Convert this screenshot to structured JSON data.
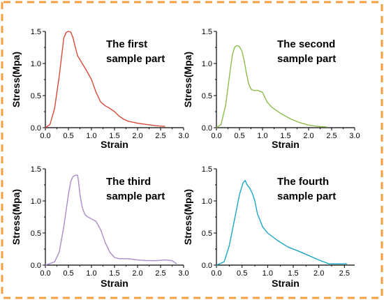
{
  "chart_data": [
    {
      "type": "line",
      "title": "",
      "annotation": [
        "The first",
        "sample part"
      ],
      "xlabel": "Strain",
      "ylabel": "Stress(Mpa)",
      "xlim": [
        0,
        3.0
      ],
      "ylim": [
        0,
        1.5
      ],
      "xticks": [
        "0.0",
        "0.5",
        "1.0",
        "1.5",
        "2.0",
        "2.5",
        "3.0"
      ],
      "yticks": [
        "0.0",
        "0.5",
        "1.0",
        "1.5"
      ],
      "color": "#d94a3a",
      "grid": false,
      "series": [
        {
          "x": [
            0,
            0.1,
            0.2,
            0.3,
            0.35,
            0.4,
            0.45,
            0.5,
            0.55,
            0.6,
            0.65,
            0.7,
            0.8,
            0.9,
            1.0,
            1.1,
            1.2,
            1.3,
            1.4,
            1.5,
            1.6,
            1.7,
            1.8,
            2.0,
            2.2,
            2.4,
            2.6
          ],
          "y": [
            0,
            0.05,
            0.3,
            0.8,
            1.1,
            1.4,
            1.48,
            1.5,
            1.49,
            1.4,
            1.25,
            1.12,
            1.0,
            0.88,
            0.75,
            0.55,
            0.4,
            0.34,
            0.3,
            0.25,
            0.18,
            0.13,
            0.1,
            0.07,
            0.05,
            0.03,
            0.02
          ]
        }
      ]
    },
    {
      "type": "line",
      "title": "",
      "annotation": [
        "The second",
        "sample part"
      ],
      "xlabel": "Strain",
      "ylabel": "Stress(Mpa)",
      "xlim": [
        0,
        3.0
      ],
      "ylim": [
        0,
        1.5
      ],
      "xticks": [
        "0.0",
        "0.5",
        "1.0",
        "1.5",
        "2.0",
        "2.5",
        "3.0"
      ],
      "yticks": [
        "0.0",
        "0.5",
        "1.0",
        "1.5"
      ],
      "color": "#8cbd4a",
      "grid": false,
      "series": [
        {
          "x": [
            0,
            0.1,
            0.2,
            0.3,
            0.35,
            0.4,
            0.45,
            0.5,
            0.55,
            0.6,
            0.65,
            0.7,
            0.75,
            0.8,
            0.9,
            1.0,
            1.1,
            1.2,
            1.4,
            1.6,
            1.8,
            2.0,
            2.2,
            2.4
          ],
          "y": [
            0,
            0.05,
            0.35,
            0.9,
            1.15,
            1.26,
            1.28,
            1.26,
            1.2,
            1.05,
            0.85,
            0.68,
            0.6,
            0.58,
            0.58,
            0.55,
            0.4,
            0.32,
            0.22,
            0.14,
            0.08,
            0.04,
            0.02,
            0.01
          ]
        }
      ]
    },
    {
      "type": "line",
      "title": "",
      "annotation": [
        "The third",
        "sample part"
      ],
      "xlabel": "Strain",
      "ylabel": "Stress(Mpa)",
      "xlim": [
        0,
        3.0
      ],
      "ylim": [
        0,
        1.5
      ],
      "xticks": [
        "0.0",
        "0.5",
        "1.0",
        "1.5",
        "2.0",
        "2.5",
        "3.0"
      ],
      "yticks": [
        "0.0",
        "0.5",
        "1.0",
        "1.5"
      ],
      "color": "#a98cc8",
      "grid": false,
      "series": [
        {
          "x": [
            0,
            0.2,
            0.3,
            0.4,
            0.5,
            0.55,
            0.6,
            0.65,
            0.7,
            0.72,
            0.75,
            0.8,
            0.85,
            0.9,
            1.0,
            1.1,
            1.2,
            1.3,
            1.4,
            1.5,
            1.6,
            1.8,
            2.0,
            2.2,
            2.4,
            2.6,
            2.75,
            2.85
          ],
          "y": [
            0,
            0.05,
            0.2,
            0.6,
            1.1,
            1.3,
            1.38,
            1.4,
            1.4,
            1.3,
            1.1,
            0.9,
            0.8,
            0.76,
            0.72,
            0.68,
            0.55,
            0.35,
            0.2,
            0.12,
            0.1,
            0.1,
            0.08,
            0.07,
            0.07,
            0.08,
            0.07,
            0.02
          ]
        }
      ]
    },
    {
      "type": "line",
      "title": "",
      "annotation": [
        "The fourth",
        "sample part"
      ],
      "xlabel": "Strain",
      "ylabel": "Stress(Mpa)",
      "xlim": [
        0,
        2.7
      ],
      "ylim": [
        0,
        1.5
      ],
      "xticks": [
        "0.0",
        "0.5",
        "1.0",
        "1.5",
        "2.0",
        "2.5"
      ],
      "yticks": [
        "0.0",
        "0.5",
        "1.0",
        "1.5"
      ],
      "color": "#1aa7c4",
      "grid": false,
      "series": [
        {
          "x": [
            0,
            0.15,
            0.25,
            0.35,
            0.45,
            0.52,
            0.56,
            0.6,
            0.65,
            0.7,
            0.75,
            0.8,
            0.9,
            1.0,
            1.2,
            1.4,
            1.6,
            1.8,
            2.0,
            2.2,
            2.35,
            2.55
          ],
          "y": [
            0,
            0.05,
            0.3,
            0.7,
            1.1,
            1.28,
            1.32,
            1.25,
            1.2,
            1.12,
            1.0,
            0.8,
            0.6,
            0.5,
            0.38,
            0.28,
            0.22,
            0.15,
            0.08,
            0.02,
            0.02,
            0.02
          ]
        }
      ]
    }
  ]
}
